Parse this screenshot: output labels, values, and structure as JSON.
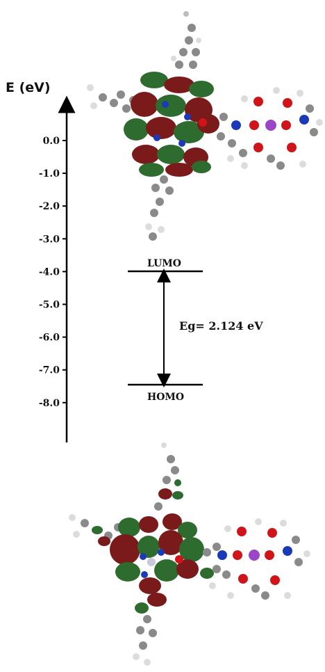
{
  "axis": {
    "label": "E (eV)",
    "ticks": [
      "0.0",
      "-1.0",
      "-2.0",
      "-3.0",
      "-4.0",
      "-5.0",
      "-6.0",
      "-7.0",
      "-8.0"
    ]
  },
  "levels": {
    "lumo_label": "LUMO",
    "homo_label": "HOMO",
    "gap_label": "Eg= 2.124 eV"
  },
  "colors": {
    "lobe_red": "#7a1a1a",
    "lobe_green": "#2e6b2e",
    "carbon": "#8a8a8a",
    "hydrogen": "#e0e0e0",
    "oxygen": "#d0141a",
    "nitrogen": "#1a3ab8",
    "boron": "#9b45c9"
  }
}
